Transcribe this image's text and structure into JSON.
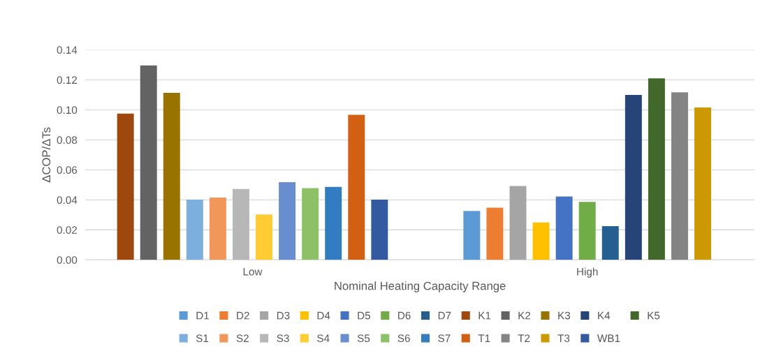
{
  "chart_data": {
    "type": "bar",
    "xlabel": "Nominal Heating Capacity Range",
    "ylabel": "ΔCOP/ΔTs",
    "categories": [
      "Low",
      "High"
    ],
    "ylim": [
      0,
      0.14
    ],
    "yticks": [
      {
        "value": 0,
        "label": "0.00"
      },
      {
        "value": 0.02,
        "label": "0.02"
      },
      {
        "value": 0.04,
        "label": "0.04"
      },
      {
        "value": 0.06,
        "label": "0.06"
      },
      {
        "value": 0.08,
        "label": "0.08"
      },
      {
        "value": 0.1,
        "label": "0.10"
      },
      {
        "value": 0.12,
        "label": "0.12"
      },
      {
        "value": 0.14,
        "label": "0.14"
      }
    ],
    "grid": "y",
    "legend": "bottom",
    "series": [
      {
        "name": "D1",
        "color": "#5b9bd5",
        "values": [
          null,
          0.0326
        ]
      },
      {
        "name": "D2",
        "color": "#ed7d31",
        "values": [
          null,
          0.0348
        ]
      },
      {
        "name": "D3",
        "color": "#a5a5a5",
        "values": [
          null,
          0.0492
        ]
      },
      {
        "name": "D4",
        "color": "#ffc000",
        "values": [
          null,
          0.0249
        ]
      },
      {
        "name": "D5",
        "color": "#4472c4",
        "values": [
          null,
          0.0423
        ]
      },
      {
        "name": "D6",
        "color": "#70ad47",
        "values": [
          null,
          0.0386
        ]
      },
      {
        "name": "D7",
        "color": "#255e91",
        "values": [
          null,
          0.0225
        ]
      },
      {
        "name": "K1",
        "color": "#9e480e",
        "values": [
          0.0975,
          null
        ]
      },
      {
        "name": "K2",
        "color": "#636363",
        "values": [
          0.1296,
          null
        ]
      },
      {
        "name": "K3",
        "color": "#997300",
        "values": [
          0.1113,
          null
        ]
      },
      {
        "name": "K4",
        "color": "#264478",
        "values": [
          null,
          0.11
        ]
      },
      {
        "name": "K5",
        "color": "#43682b",
        "values": [
          null,
          0.121
        ]
      },
      {
        "name": "S1",
        "color": "#7cafdd",
        "values": [
          0.0402,
          null
        ]
      },
      {
        "name": "S2",
        "color": "#f1975a",
        "values": [
          0.0416,
          null
        ]
      },
      {
        "name": "S3",
        "color": "#b7b7b7",
        "values": [
          0.0472,
          null
        ]
      },
      {
        "name": "S4",
        "color": "#ffcd33",
        "values": [
          0.0303,
          null
        ]
      },
      {
        "name": "S5",
        "color": "#698ed0",
        "values": [
          0.0518,
          null
        ]
      },
      {
        "name": "S6",
        "color": "#8cc168",
        "values": [
          0.0478,
          null
        ]
      },
      {
        "name": "S7",
        "color": "#327dc2",
        "values": [
          0.0487,
          null
        ]
      },
      {
        "name": "T1",
        "color": "#d26012",
        "values": [
          0.0967,
          null
        ]
      },
      {
        "name": "T2",
        "color": "#848484",
        "values": [
          null,
          0.1117
        ]
      },
      {
        "name": "T3",
        "color": "#cc9a00",
        "values": [
          null,
          0.1016
        ]
      },
      {
        "name": "WB1",
        "color": "#335aa1",
        "values": [
          0.0402,
          null
        ]
      }
    ]
  }
}
